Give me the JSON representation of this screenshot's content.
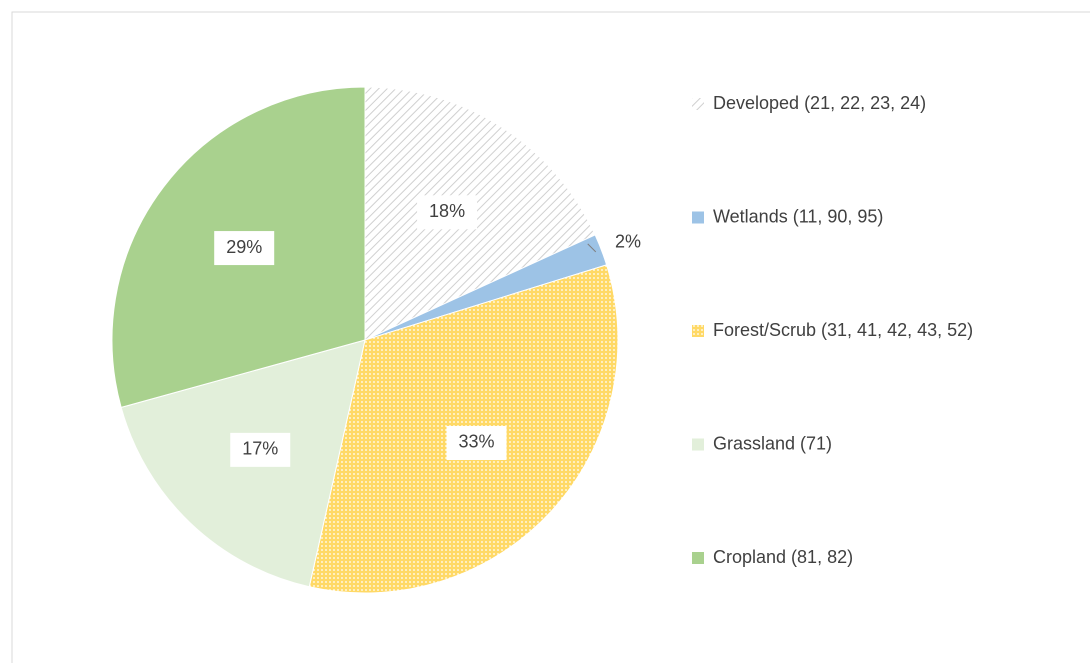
{
  "chart_data": {
    "type": "pie",
    "categories": [
      "Developed (21, 22, 23, 24)",
      "Wetlands (11, 90, 95)",
      "Forest/Scrub (31, 41, 42, 43, 52)",
      "Grassland (71)",
      "Cropland (81, 82)"
    ],
    "values": [
      18,
      2,
      33,
      17,
      29
    ],
    "value_labels": [
      "18%",
      "2%",
      "33%",
      "17%",
      "29%"
    ],
    "colors": [
      "#d0d0d0",
      "#9dc3e6",
      "#ffd966",
      "#e2efda",
      "#a9d18e"
    ],
    "patterns": [
      "hatch",
      "solid",
      "dots",
      "solid",
      "solid"
    ],
    "legend": "right"
  }
}
